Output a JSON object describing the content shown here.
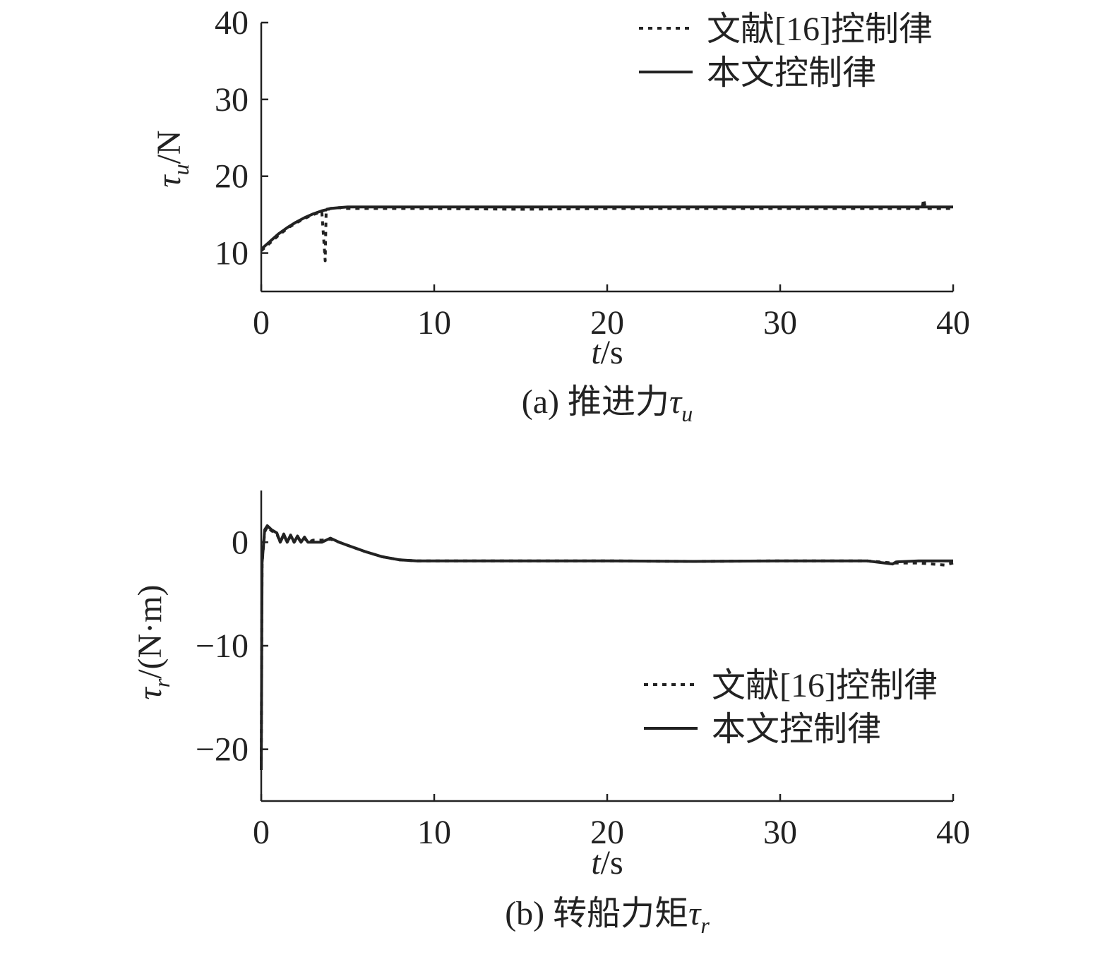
{
  "chart_data": [
    {
      "type": "line",
      "xlabel": [
        "t",
        "/s"
      ],
      "ylabel": [
        "τ",
        "u",
        "/N"
      ],
      "caption": [
        "(a) 推进力",
        "τ",
        "u"
      ],
      "x": [
        0,
        0.5,
        1,
        1.5,
        2,
        2.5,
        3,
        3.5,
        3.7,
        3.75,
        3.8,
        4,
        4.5,
        5,
        6,
        8,
        10,
        15,
        20,
        25,
        30,
        35,
        38.2,
        38.3,
        38.4,
        40
      ],
      "series": [
        {
          "name": "文献[16]控制律",
          "color": "#222222",
          "dashed": true,
          "values": [
            10.3,
            11.3,
            12.3,
            13.2,
            13.9,
            14.5,
            15.0,
            15.4,
            9,
            15.3,
            15.6,
            15.8,
            15.9,
            15.8,
            15.8,
            15.8,
            15.8,
            15.7,
            15.8,
            15.8,
            15.8,
            15.8,
            15.8,
            17,
            15.8,
            15.8
          ]
        },
        {
          "name": "本文控制律",
          "color": "#222222",
          "dashed": false,
          "values": [
            10.5,
            11.5,
            12.5,
            13.3,
            14,
            14.6,
            15.1,
            15.5,
            15.6,
            15.6,
            15.7,
            15.8,
            15.9,
            16,
            16,
            16,
            16,
            16,
            16,
            16,
            16,
            16,
            16,
            16,
            16,
            16
          ]
        }
      ],
      "xlim": [
        0,
        40
      ],
      "xticks": [
        0,
        10,
        20,
        30,
        40
      ],
      "ylim": [
        5,
        40
      ],
      "yticks": [
        10,
        20,
        30,
        40
      ],
      "legend": "upper right"
    },
    {
      "type": "line",
      "xlabel": [
        "t",
        "/s"
      ],
      "ylabel": [
        "τ",
        "r",
        "/(N·m)"
      ],
      "caption": [
        "(b) 转船力矩",
        "τ",
        "r"
      ],
      "x": [
        0,
        0.05,
        0.2,
        0.35,
        0.6,
        0.9,
        1.1,
        1.3,
        1.5,
        1.7,
        1.9,
        2.1,
        2.3,
        2.5,
        2.7,
        3,
        3.5,
        4,
        4.5,
        5,
        6,
        7,
        8,
        9,
        10,
        15,
        20,
        25,
        30,
        35,
        36.5,
        36.7,
        38,
        39.5,
        40
      ],
      "series": [
        {
          "name": "文献[16]控制律",
          "color": "#222222",
          "dashed": true,
          "values": [
            -22,
            -2,
            1.0,
            1.5,
            1.1,
            0.8,
            0,
            0.7,
            0,
            0.6,
            0,
            0.5,
            0,
            0.4,
            0,
            0.2,
            0.2,
            0.3,
            0,
            -0.3,
            -0.9,
            -1.4,
            -1.7,
            -1.8,
            -1.8,
            -1.8,
            -1.8,
            -1.85,
            -1.8,
            -1.8,
            -2.0,
            -2.0,
            -2.0,
            -2.2,
            -2.0
          ]
        },
        {
          "name": "本文控制律",
          "color": "#222222",
          "dashed": false,
          "values": [
            -22,
            -2,
            1.2,
            1.6,
            1.2,
            0.9,
            0,
            0.8,
            0,
            0.7,
            0,
            0.6,
            0,
            0.5,
            0,
            0,
            0,
            0.4,
            0,
            -0.3,
            -0.9,
            -1.4,
            -1.7,
            -1.8,
            -1.8,
            -1.8,
            -1.8,
            -1.85,
            -1.8,
            -1.8,
            -2.1,
            -1.9,
            -1.8,
            -1.8,
            -1.8
          ]
        }
      ],
      "xlim": [
        0,
        40
      ],
      "xticks": [
        0,
        10,
        20,
        30,
        40
      ],
      "ylim": [
        -25,
        5
      ],
      "yticks": [
        {
          "value": -20,
          "label": "−20"
        },
        {
          "value": -10,
          "label": "−10"
        },
        0
      ],
      "legend": "center right"
    }
  ]
}
